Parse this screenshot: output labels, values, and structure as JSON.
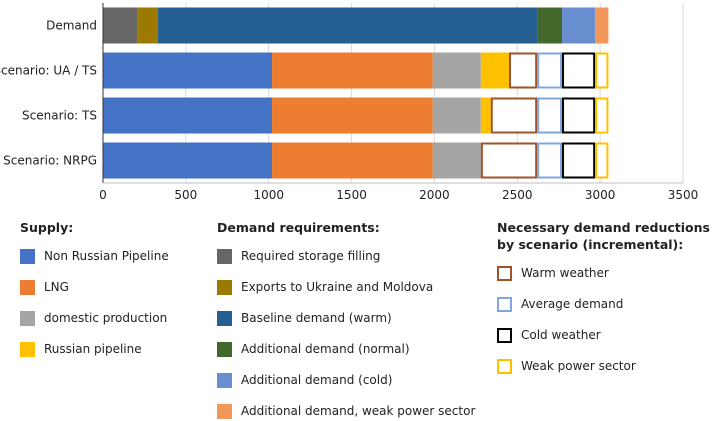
{
  "chart_data": {
    "type": "bar",
    "orientation": "horizontal",
    "stacked": true,
    "categories": [
      "Demand",
      "Scenario: UA / TS",
      "Scenario: TS",
      "Scenario: NRPG"
    ],
    "xlim": [
      0,
      3500
    ],
    "xticks": [
      "0",
      "500",
      "1000",
      "1500",
      "2000",
      "2500",
      "3000",
      "3500"
    ],
    "grid": "vertical",
    "series": [
      {
        "name": "Required storage filling",
        "color": "#666666",
        "fill": "solid",
        "values": [
          210,
          0,
          0,
          0
        ]
      },
      {
        "name": "Exports to Ukraine and Moldova",
        "color": "#9C7A00",
        "fill": "solid",
        "values": [
          120,
          0,
          0,
          0
        ]
      },
      {
        "name": "Baseline demand (warm)",
        "color": "#255E91",
        "fill": "solid",
        "values": [
          2290,
          0,
          0,
          0
        ]
      },
      {
        "name": "Additional demand (normal)",
        "color": "#43682B",
        "fill": "solid",
        "values": [
          150,
          0,
          0,
          0
        ]
      },
      {
        "name": "Additional demand (cold)",
        "color": "#698ED0",
        "fill": "solid",
        "values": [
          200,
          0,
          0,
          0
        ]
      },
      {
        "name": "Additional demand, weak power sector",
        "color": "#F1975A",
        "fill": "solid",
        "values": [
          80,
          0,
          0,
          0
        ]
      },
      {
        "name": "Non Russian Pipeline",
        "color": "#4472C4",
        "fill": "solid",
        "values": [
          0,
          1020,
          1020,
          1020
        ]
      },
      {
        "name": "LNG",
        "color": "#ED7D31",
        "fill": "solid",
        "values": [
          0,
          970,
          970,
          970
        ]
      },
      {
        "name": "domestic production",
        "color": "#A5A5A5",
        "fill": "solid",
        "values": [
          0,
          290,
          290,
          290
        ]
      },
      {
        "name": "Russian pipeline",
        "color": "#FFC000",
        "fill": "solid",
        "values": [
          0,
          170,
          60,
          0
        ]
      },
      {
        "name": "Warm weather",
        "color": "#A0522D",
        "fill": "outline",
        "values": [
          0,
          170,
          280,
          340
        ]
      },
      {
        "name": "Average demand",
        "color": "#7FA7DE",
        "fill": "outline",
        "values": [
          0,
          150,
          150,
          150
        ]
      },
      {
        "name": "Cold weather",
        "color": "#000000",
        "fill": "outline",
        "values": [
          0,
          200,
          200,
          200
        ]
      },
      {
        "name": "Weak power sector",
        "color": "#FFC000",
        "fill": "outline",
        "values": [
          0,
          80,
          80,
          80
        ]
      }
    ]
  },
  "legend": {
    "supply": {
      "title": "Supply:",
      "items": [
        {
          "label": "Non Russian Pipeline",
          "color": "#4472C4",
          "fill": "solid"
        },
        {
          "label": "LNG",
          "color": "#ED7D31",
          "fill": "solid"
        },
        {
          "label": "domestic production",
          "color": "#A5A5A5",
          "fill": "solid"
        },
        {
          "label": "Russian pipeline",
          "color": "#FFC000",
          "fill": "solid"
        }
      ]
    },
    "demand": {
      "title": "Demand requirements:",
      "items": [
        {
          "label": "Required storage filling",
          "color": "#666666",
          "fill": "solid"
        },
        {
          "label": "Exports to Ukraine and Moldova",
          "color": "#9C7A00",
          "fill": "solid"
        },
        {
          "label": "Baseline demand (warm)",
          "color": "#255E91",
          "fill": "solid"
        },
        {
          "label": "Additional demand (normal)",
          "color": "#43682B",
          "fill": "solid"
        },
        {
          "label": "Additional demand (cold)",
          "color": "#698ED0",
          "fill": "solid"
        },
        {
          "label": "Additional demand, weak power sector",
          "color": "#F1975A",
          "fill": "solid"
        }
      ]
    },
    "reductions": {
      "title_line1": "Necessary demand reductions",
      "title_line2": "by scenario (incremental):",
      "items": [
        {
          "label": "Warm weather",
          "color": "#A0522D",
          "fill": "outline"
        },
        {
          "label": "Average demand",
          "color": "#7FA7DE",
          "fill": "outline"
        },
        {
          "label": "Cold weather",
          "color": "#000000",
          "fill": "outline"
        },
        {
          "label": "Weak power sector",
          "color": "#FFC000",
          "fill": "outline"
        }
      ]
    }
  }
}
